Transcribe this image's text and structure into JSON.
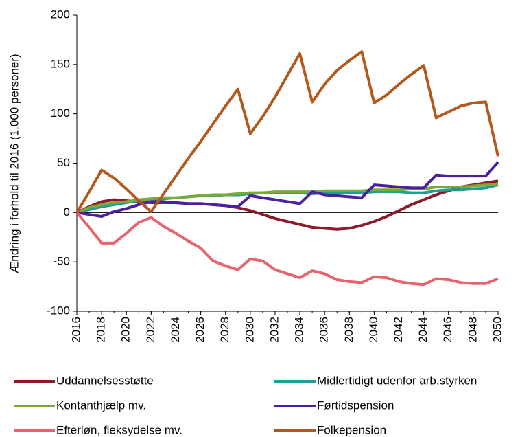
{
  "chart_data": {
    "type": "line",
    "y_label": "Ændring i forhold til 2016 (1.000 personer)",
    "x": [
      2016,
      2017,
      2018,
      2019,
      2020,
      2021,
      2022,
      2023,
      2024,
      2025,
      2026,
      2027,
      2028,
      2029,
      2030,
      2031,
      2032,
      2033,
      2034,
      2035,
      2036,
      2037,
      2038,
      2039,
      2040,
      2041,
      2042,
      2043,
      2044,
      2045,
      2046,
      2047,
      2048,
      2049,
      2050
    ],
    "xlim": [
      2016,
      2050
    ],
    "xticks": [
      2016,
      2018,
      2020,
      2022,
      2024,
      2026,
      2028,
      2030,
      2032,
      2034,
      2036,
      2038,
      2040,
      2042,
      2044,
      2046,
      2048,
      2050
    ],
    "ylim": [
      -100,
      200
    ],
    "yticks": [
      -100,
      -50,
      0,
      50,
      100,
      150,
      200
    ],
    "grid": false,
    "series": [
      {
        "name": "Uddannelsesstøtte",
        "color": "#8b1a2b",
        "values": [
          0,
          6,
          11,
          13,
          12,
          11,
          10,
          10,
          10,
          9,
          9,
          8,
          7,
          5,
          2,
          -2,
          -6,
          -9,
          -12,
          -15,
          -16,
          -17,
          -16,
          -13,
          -9,
          -4,
          2,
          8,
          13,
          18,
          22,
          26,
          28,
          30,
          32
        ]
      },
      {
        "name": "Midlertidigt udenfor arb.styrken",
        "color": "#1e9e95",
        "values": [
          0,
          3,
          6,
          8,
          10,
          12,
          13,
          14,
          15,
          16,
          17,
          17,
          18,
          18,
          19,
          20,
          20,
          20,
          20,
          19,
          20,
          20,
          20,
          20,
          21,
          21,
          21,
          20,
          20,
          22,
          23,
          23,
          24,
          25,
          28
        ]
      },
      {
        "name": "Kontanthjælp mv.",
        "color": "#7aa83a",
        "values": [
          0,
          5,
          8,
          10,
          11,
          13,
          14,
          15,
          15,
          16,
          17,
          18,
          18,
          19,
          20,
          20,
          21,
          21,
          21,
          21,
          22,
          22,
          22,
          22,
          23,
          23,
          23,
          24,
          24,
          26,
          26,
          26,
          27,
          28,
          29
        ]
      },
      {
        "name": "Førtidspension",
        "color": "#4b1fa0",
        "values": [
          0,
          -2,
          -4,
          1,
          4,
          8,
          11,
          11,
          10,
          9,
          9,
          8,
          7,
          6,
          17,
          15,
          13,
          11,
          9,
          21,
          18,
          17,
          16,
          15,
          28,
          27,
          26,
          25,
          25,
          38,
          37,
          37,
          37,
          37,
          51
        ]
      },
      {
        "name": "Efterløn, fleksydelse mv.",
        "color": "#e8636e",
        "values": [
          0,
          -15,
          -31,
          -31,
          -21,
          -10,
          -5,
          -14,
          -21,
          -29,
          -36,
          -49,
          -54,
          -58,
          -47,
          -49,
          -58,
          -62,
          -66,
          -59,
          -62,
          -68,
          -70,
          -71,
          -65,
          -66,
          -70,
          -72,
          -73,
          -67,
          -68,
          -71,
          -72,
          -72,
          -67
        ]
      },
      {
        "name": "Folkepension",
        "color": "#b5581b",
        "values": [
          0,
          21,
          43,
          35,
          24,
          12,
          1,
          19,
          37,
          55,
          72,
          90,
          108,
          125,
          80,
          97,
          117,
          139,
          161,
          112,
          130,
          144,
          154,
          163,
          111,
          119,
          130,
          140,
          149,
          96,
          102,
          108,
          111,
          112,
          57
        ]
      }
    ]
  }
}
